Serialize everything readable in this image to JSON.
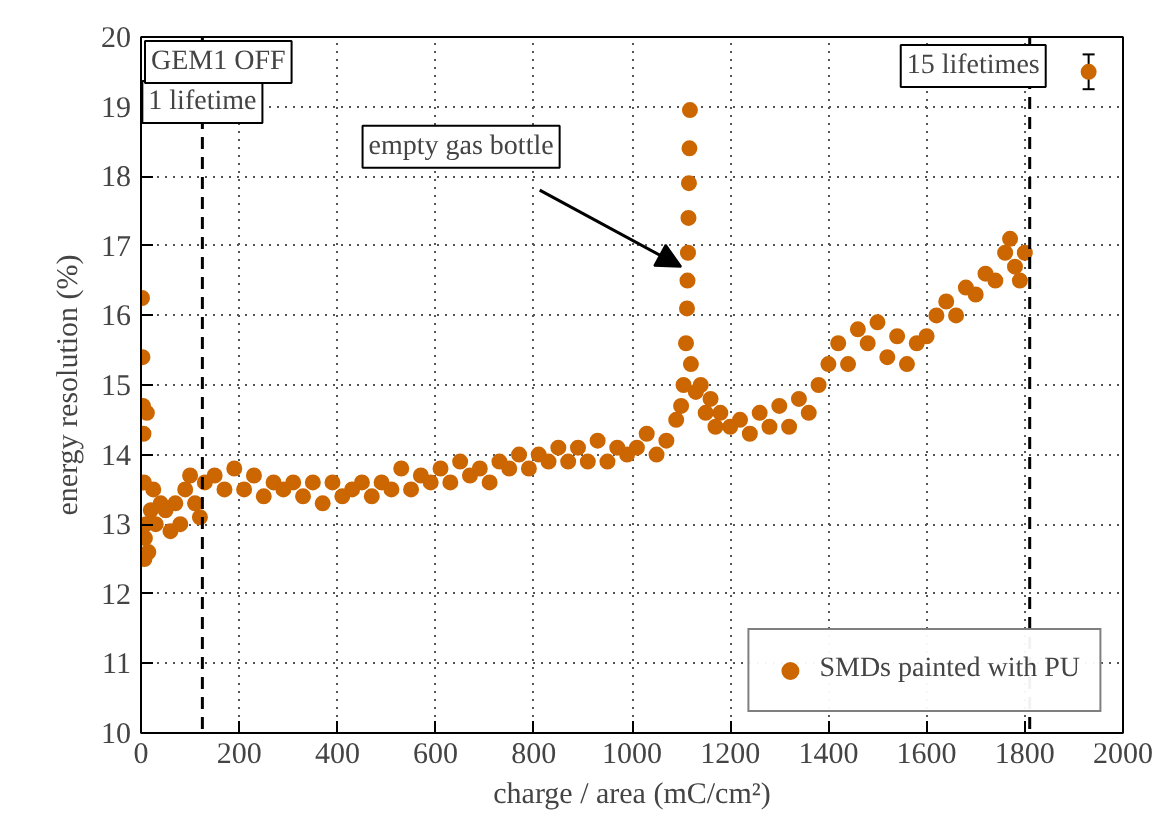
{
  "chart_data": {
    "type": "scatter",
    "xlabel": "charge / area (mC/cm²)",
    "ylabel": "energy resolution (%)",
    "xlim": [
      0,
      2000
    ],
    "ylim": [
      10,
      20
    ],
    "xticks": [
      0,
      200,
      400,
      600,
      800,
      1000,
      1200,
      1400,
      1600,
      1800,
      2000
    ],
    "yticks": [
      10,
      11,
      12,
      13,
      14,
      15,
      16,
      17,
      18,
      19,
      20
    ],
    "grid": true,
    "legend": "bottom right",
    "marker": "circle",
    "series": [
      {
        "name": "SMDs painted with PU",
        "color": "#cc6600",
        "x": [
          2,
          3,
          4,
          5,
          6,
          7,
          8,
          10,
          12,
          15,
          20,
          25,
          30,
          40,
          50,
          60,
          70,
          80,
          90,
          100,
          110,
          120,
          130,
          150,
          170,
          190,
          210,
          230,
          250,
          270,
          290,
          310,
          330,
          350,
          370,
          390,
          410,
          430,
          450,
          470,
          490,
          510,
          530,
          550,
          570,
          590,
          610,
          630,
          650,
          670,
          690,
          710,
          730,
          750,
          770,
          790,
          810,
          830,
          850,
          870,
          890,
          910,
          930,
          950,
          970,
          990,
          1010,
          1030,
          1050,
          1070,
          1090,
          1100,
          1105,
          1110,
          1112,
          1113,
          1114,
          1115,
          1116,
          1117,
          1118,
          1120,
          1130,
          1140,
          1150,
          1160,
          1170,
          1180,
          1200,
          1220,
          1240,
          1260,
          1280,
          1300,
          1320,
          1340,
          1360,
          1380,
          1400,
          1420,
          1440,
          1460,
          1480,
          1500,
          1520,
          1540,
          1560,
          1580,
          1600,
          1620,
          1640,
          1660,
          1680,
          1700,
          1720,
          1740,
          1760,
          1770,
          1780,
          1790,
          1800
        ],
        "values": [
          16.25,
          15.4,
          14.7,
          14.3,
          13.6,
          12.5,
          12.8,
          13.0,
          14.6,
          12.6,
          13.2,
          13.5,
          13.0,
          13.3,
          13.2,
          12.9,
          13.3,
          13.0,
          13.5,
          13.7,
          13.3,
          13.1,
          13.6,
          13.7,
          13.5,
          13.8,
          13.5,
          13.7,
          13.4,
          13.6,
          13.5,
          13.6,
          13.4,
          13.6,
          13.3,
          13.6,
          13.4,
          13.5,
          13.6,
          13.4,
          13.6,
          13.5,
          13.8,
          13.5,
          13.7,
          13.6,
          13.8,
          13.6,
          13.9,
          13.7,
          13.8,
          13.6,
          13.9,
          13.8,
          14.0,
          13.8,
          14.0,
          13.9,
          14.1,
          13.9,
          14.1,
          13.9,
          14.2,
          13.9,
          14.1,
          14.0,
          14.1,
          14.3,
          14.0,
          14.2,
          14.5,
          14.7,
          15.0,
          15.6,
          16.1,
          16.5,
          16.9,
          17.4,
          17.9,
          18.4,
          18.95,
          15.3,
          14.9,
          15.0,
          14.6,
          14.8,
          14.4,
          14.6,
          14.4,
          14.5,
          14.3,
          14.6,
          14.4,
          14.7,
          14.4,
          14.8,
          14.6,
          15.0,
          15.3,
          15.6,
          15.3,
          15.8,
          15.6,
          15.9,
          15.4,
          15.7,
          15.3,
          15.6,
          15.7,
          16.0,
          16.2,
          16.0,
          16.4,
          16.3,
          16.6,
          16.5,
          16.9,
          17.1,
          16.7,
          16.5,
          16.9
        ]
      },
      {
        "color": "#cc6600",
        "x": [
          1930
        ],
        "values": [
          19.5
        ],
        "errors": [
          0.25
        ]
      }
    ],
    "ref_lines": [
      {
        "axis": "x",
        "value": 125,
        "label": "1 lifetime",
        "line_style": "dashed",
        "color": "#000000"
      },
      {
        "axis": "x",
        "value": 1810,
        "label": "15 lifetimes",
        "line_style": "dashed",
        "color": "#000000"
      }
    ],
    "annotations": [
      "GEM1 OFF",
      {
        "text": "empty gas bottle",
        "x": 1100,
        "y": 16.7
      }
    ]
  }
}
